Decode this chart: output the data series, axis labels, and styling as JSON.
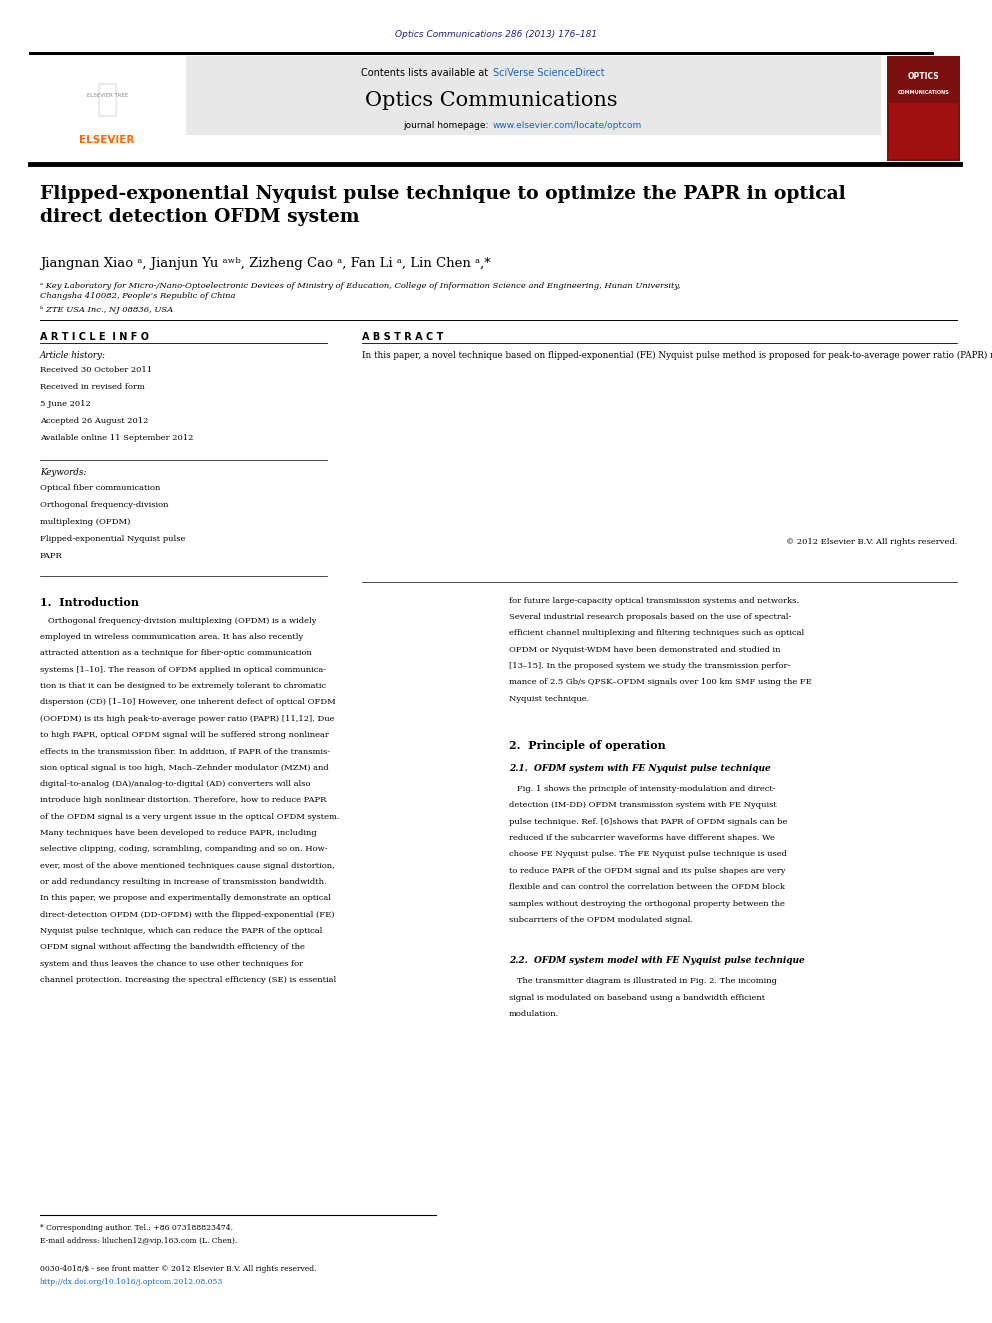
{
  "page_width": 9.92,
  "page_height": 13.23,
  "bg_color": "#ffffff",
  "journal_ref": "Optics Communications 286 (2013) 176–181",
  "journal_ref_color": "#1a237e",
  "header_bg": "#e8e8e8",
  "header_contents": "Contents lists available at ",
  "header_sciverse": "SciVerse ScienceDirect",
  "header_sciverse_color": "#1565c0",
  "journal_title": "Optics Communications",
  "journal_homepage_prefix": "journal homepage: ",
  "journal_homepage_url": "www.elsevier.com/locate/optcom",
  "journal_homepage_url_color": "#1565c0",
  "article_title": "Flipped-exponential Nyquist pulse technique to optimize the PAPR in optical\ndirect detection OFDM system",
  "authors_line": "Jiangnan Xiao ᵃ, Jianjun Yu ᵃʷᵇ, Zizheng Cao ᵃ, Fan Li ᵃ, Lin Chen ᵃ,*",
  "affil_a": "ᵃ Key Laboratory for Micro-/Nano-Optoelectronic Devices of Ministry of Education, College of Information Science and Engineering, Hunan University,\nChangsha 410082, People’s Republic of China",
  "affil_b": "ᵇ ZTE USA Inc., NJ 08836, USA",
  "article_info_title": "A R T I C L E  I N F O",
  "abstract_title": "A B S T R A C T",
  "article_history_label": "Article history:",
  "received1": "Received 30 October 2011",
  "received_revised": "Received in revised form",
  "received_revised2": "5 June 2012",
  "accepted": "Accepted 26 August 2012",
  "available": "Available online 11 September 2012",
  "keywords_label": "Keywords:",
  "kw1": "Optical fiber communication",
  "kw2": "Orthogonal frequency-division",
  "kw3": "multiplexing (OFDM)",
  "kw4": "Flipped-exponential Nyquist pulse",
  "kw5": "PAPR",
  "abstract_text": "In this paper, a novel technique based on flipped-exponential (FE) Nyquist pulse method is proposed for peak-to-average power ratio (PAPR) reduction in optical direct detection orthogonal frequency-division multiplexing (DD-OFDM) system. The method is based on a proper selection of the FE Nyquist pulses for shaping the different subcarriers of the OFDM. We experimentally demonstrated an optical DD-OFDM transmission system with this novel technique to achieve significant improvement in PAPR reduction in the optical OFDM system. The received sensitivity of the OFDM signal after suffered from strong nonlinear effects in standard single-mode fiber (SMF) has been experimentally investigated.",
  "abstract_copyright": "© 2012 Elsevier B.V. All rights reserved.",
  "section1_title": "1.  Introduction",
  "section1_col1_lines": [
    "   Orthogonal frequency-division multiplexing (OFDM) is a widely",
    "employed in wireless communication area. It has also recently",
    "attracted attention as a technique for fiber-optic communication",
    "systems [1–10]. The reason of OFDM applied in optical communica-",
    "tion is that it can be designed to be extremely tolerant to chromatic",
    "dispersion (CD) [1–10] However, one inherent defect of optical OFDM",
    "(OOFDM) is its high peak-to-average power ratio (PAPR) [11,12]. Due",
    "to high PAPR, optical OFDM signal will be suffered strong nonlinear",
    "effects in the transmission fiber. In addition, if PAPR of the transmis-",
    "sion optical signal is too high, Mach–Zehnder modulator (MZM) and",
    "digital-to-analog (DA)/analog-to-digital (AD) converters will also",
    "introduce high nonlinear distortion. Therefore, how to reduce PAPR",
    "of the OFDM signal is a very urgent issue in the optical OFDM system.",
    "Many techniques have been developed to reduce PAPR, including",
    "selective clipping, coding, scrambling, companding and so on. How-",
    "ever, most of the above mentioned techniques cause signal distortion,",
    "or add redundancy resulting in increase of transmission bandwidth.",
    "In this paper, we propose and experimentally demonstrate an optical",
    "direct-detection OFDM (DD-OFDM) with the flipped-exponential (FE)",
    "Nyquist pulse technique, which can reduce the PAPR of the optical",
    "OFDM signal without affecting the bandwidth efficiency of the",
    "system and thus leaves the chance to use other techniques for",
    "channel protection. Increasing the spectral efficiency (SE) is essential"
  ],
  "section1_col2_lines": [
    "for future large-capacity optical transmission systems and networks.",
    "Several industrial research proposals based on the use of spectral-",
    "efficient channel multiplexing and filtering techniques such as optical",
    "OFDM or Nyquist-WDM have been demonstrated and studied in",
    "[13–15]. In the proposed system we study the transmission perfor-",
    "mance of 2.5 Gb/s QPSK–OFDM signals over 100 km SMF using the FE",
    "Nyquist technique."
  ],
  "section2_title": "2.  Principle of operation",
  "section2_sub1": "2.1.  OFDM system with FE Nyquist pulse technique",
  "section2_sub1_lines": [
    "   Fig. 1 shows the principle of intensity-modulation and direct-",
    "detection (IM-DD) OFDM transmission system with FE Nyquist",
    "pulse technique. Ref. [6]shows that PAPR of OFDM signals can be",
    "reduced if the subcarrier waveforms have different shapes. We",
    "choose FE Nyquist pulse. The FE Nyquist pulse technique is used",
    "to reduce PAPR of the OFDM signal and its pulse shapes are very",
    "flexible and can control the correlation between the OFDM block",
    "samples without destroying the orthogonal property between the",
    "subcarriers of the OFDM modulated signal."
  ],
  "section2_sub2": "2.2.  OFDM system model with FE Nyquist pulse technique",
  "section2_sub2_lines": [
    "   The transmitter diagram is illustrated in Fig. 2. The incoming",
    "signal is modulated on baseband using a bandwidth efficient",
    "modulation."
  ],
  "footer_text1": "* Corresponding author. Tel.: +86 073188823474.",
  "footer_text2": "E-mail address: liluchen12@vip.163.com (L. Chen).",
  "footer_text3": "0030-4018/$ - see front matter © 2012 Elsevier B.V. All rights reserved.",
  "footer_text4": "http://dx.doi.org/10.1016/j.optcom.2012.08.053",
  "orange_color": "#e65100",
  "blue_color": "#1565c0",
  "dark_red_color": "#7b1010",
  "elsevier_orange": "#ff6600"
}
